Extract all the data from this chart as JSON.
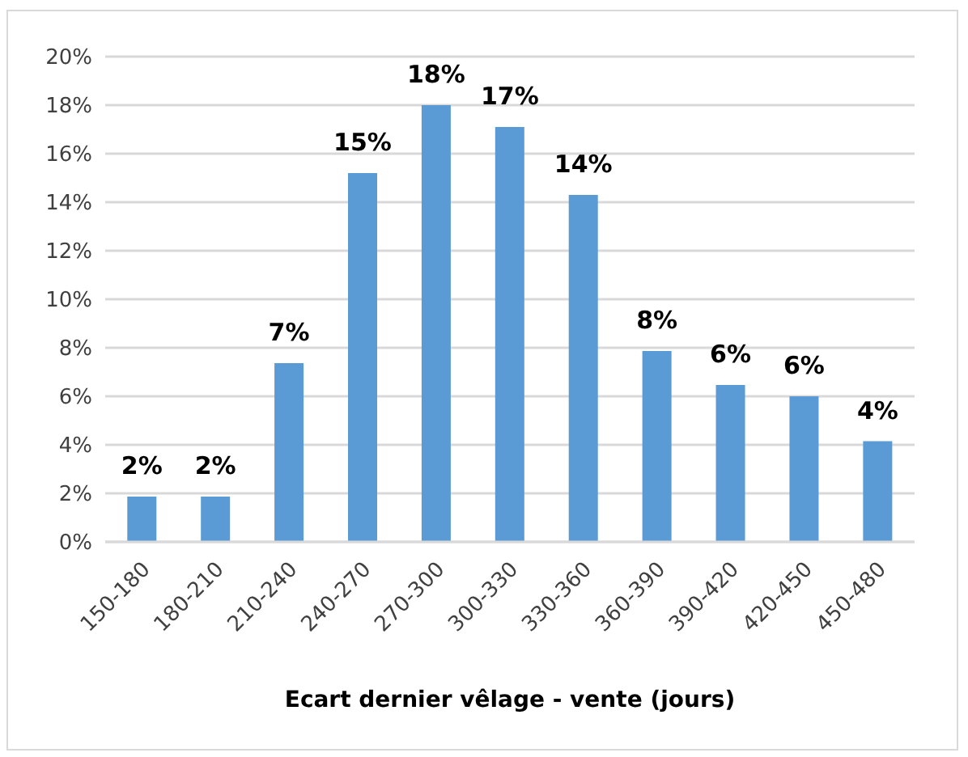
{
  "chart_data": {
    "type": "bar",
    "xlabel": "Ecart dernier vêlage - vente (jours)",
    "categories": [
      "150-180",
      "180-210",
      "210-240",
      "240-270",
      "270-300",
      "300-330",
      "330-360",
      "360-390",
      "390-420",
      "420-450",
      "450-480"
    ],
    "values": [
      1.87,
      1.87,
      7.37,
      15.2,
      18.0,
      17.1,
      14.3,
      7.87,
      6.47,
      6.0,
      4.15
    ],
    "value_labels": [
      "2%",
      "2%",
      "7%",
      "15%",
      "18%",
      "17%",
      "14%",
      "8%",
      "6%",
      "6%",
      "4%"
    ],
    "color": "#5b9bd5",
    "ylim": [
      0,
      20
    ],
    "yticks": [
      {
        "value": 0,
        "label": "0%"
      },
      {
        "value": 2,
        "label": "2%"
      },
      {
        "value": 4,
        "label": "4%"
      },
      {
        "value": 6,
        "label": "6%"
      },
      {
        "value": 8,
        "label": "8%"
      },
      {
        "value": 10,
        "label": "10%"
      },
      {
        "value": 12,
        "label": "12%"
      },
      {
        "value": 14,
        "label": "14%"
      },
      {
        "value": 16,
        "label": "16%"
      },
      {
        "value": 18,
        "label": "18%"
      },
      {
        "value": 20,
        "label": "20%"
      }
    ],
    "grid": "y"
  }
}
